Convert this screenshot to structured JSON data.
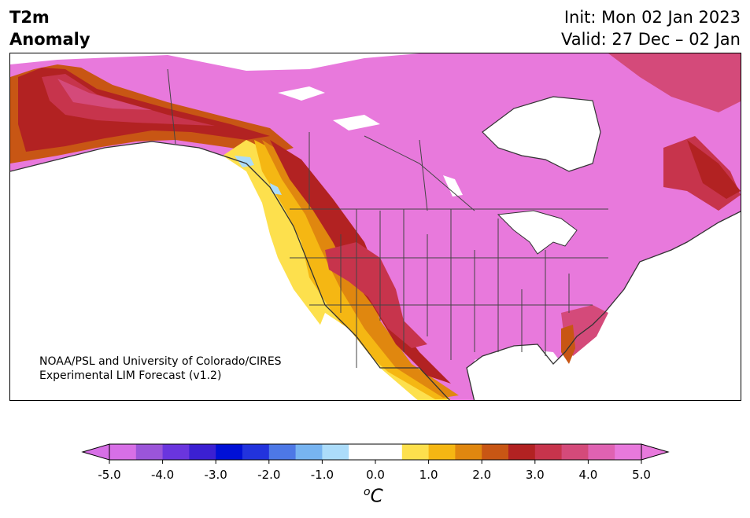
{
  "header": {
    "variable": "T2m",
    "subtitle": "Anomaly",
    "init": "Init: Mon 02 Jan 2023",
    "valid": "Valid: 27 Dec – 02 Jan"
  },
  "map": {
    "credit_line1": "NOAA/PSL and University of Colorado/CIRES",
    "credit_line2": "Experimental LIM Forecast (v1.2)"
  },
  "colorbar": {
    "unit_sup": "o",
    "unit": "C",
    "ticks": [
      "-5.0",
      "-4.0",
      "-3.0",
      "-2.0",
      "-1.0",
      "0.0",
      "1.0",
      "2.0",
      "3.0",
      "4.0",
      "5.0"
    ],
    "colors": [
      "#d76fe6",
      "#9b55d9",
      "#6a35de",
      "#3b20d2",
      "#0010d6",
      "#2233dd",
      "#4d78e6",
      "#77b4f1",
      "#acdcfa",
      "#ffffff",
      "#ffffff",
      "#fde04d",
      "#f5b713",
      "#e0870f",
      "#c85614",
      "#b22222",
      "#c7344c",
      "#d44a7a",
      "#df62b2",
      "#e879dc"
    ],
    "colors_under": "#e879dc",
    "colors_over": "#d76fe6"
  }
}
